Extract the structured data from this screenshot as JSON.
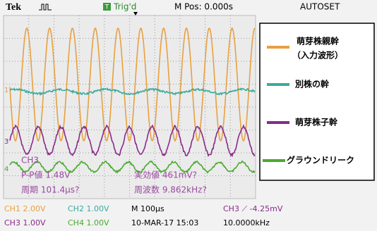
{
  "header": {
    "brand": "Tek",
    "trigger_status": "Trig'd",
    "position": "M Pos: 0.000s",
    "button": "AUTOSET"
  },
  "markers": {
    "trigger": "T",
    "ch1": "1",
    "ch3": "3",
    "ch4": "4"
  },
  "measurements": {
    "channel": "CH3",
    "pp": "P-P値 1.48V",
    "rms": "実効値 461mV?",
    "period": "周期 101.4μs?",
    "frequency": "周波数 9.862kHz?"
  },
  "status_bar": {
    "ch1": "CH1 2.00V",
    "ch2": "CH2 1.00V",
    "timebase": "M 100μs",
    "trigger": "CH3 ⟋ -4.25mV",
    "ch3": "CH3 1.00V",
    "ch4": "CH4 1.00V",
    "date": "10-MAR-17 15:03",
    "trigger_freq": "10.0000kHz"
  },
  "legend": {
    "items": [
      {
        "label": "萌芽株親幹",
        "sublabel": "（入力波形）"
      },
      {
        "label": "別株の幹"
      },
      {
        "label": "萌芽株子幹"
      },
      {
        "label": "グラウンドリーク"
      }
    ]
  }
}
